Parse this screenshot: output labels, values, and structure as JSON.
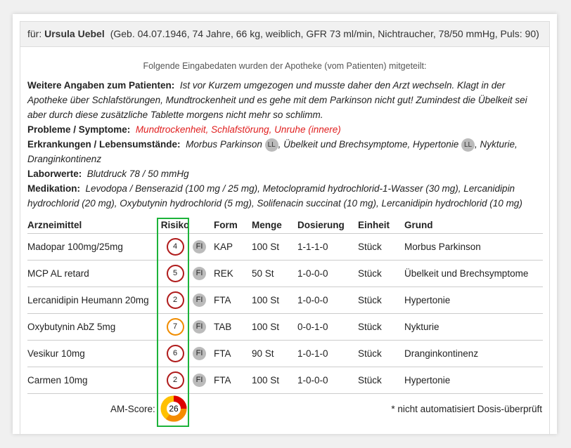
{
  "header": {
    "prefix": "für:",
    "name": "Ursula Uebel",
    "details": "(Geb. 04.07.1946, 74 Jahre, 66 kg, weiblich, GFR 73 ml/min, Nichtraucher, 78/50 mmHg, Puls: 90)"
  },
  "intro": "Folgende Eingabedaten wurden der Apotheke (vom Patienten) mitgeteilt:",
  "info": {
    "weitere_label": "Weitere Angaben zum Patienten:",
    "weitere": "Ist vor Kurzem umgezogen und musste daher den Arzt wechseln. Klagt in der Apotheke über Schlafstörungen, Mundtrockenheit und es gehe mit dem Parkinson nicht gut! Zumindest die Übelkeit sei aber durch diese zusätzliche Tablette morgens nicht mehr so schlimm.",
    "probleme_label": "Probleme / Symptome:",
    "probleme": "Mundtrockenheit, Schlafstörung, Unruhe (innere)",
    "erkrankungen_label": "Erkrankungen / Lebensumstände:",
    "erk1": "Morbus Parkinson",
    "erk2": ", Übelkeit und Brechsymptome, Hypertonie",
    "erk3": ", Nykturie, Dranginkontinenz",
    "ll": "LL",
    "labor_label": "Laborwerte:",
    "labor": "Blutdruck 78 / 50 mmHg",
    "medikation_label": "Medikation:",
    "medikation": "Levodopa / Benserazid (100 mg / 25 mg), Metoclopramid hydrochlorid-1-Wasser (30 mg), Lercanidipin hydrochlorid (20 mg), Oxybutynin hydrochlorid (5 mg), Solifenacin succinat (10 mg), Lercanidipin hydrochlorid (10 mg)"
  },
  "table": {
    "headers": [
      "Arzneimittel",
      "Risiko",
      "",
      "Form",
      "Menge",
      "Dosierung",
      "Einheit",
      "Grund"
    ],
    "rows": [
      {
        "name": "Madopar 100mg/25mg",
        "risk": "4",
        "color": "#b01c1c",
        "fi": "FI",
        "form": "KAP",
        "menge": "100 St",
        "dos": "1-1-1-0",
        "einheit": "Stück",
        "grund": "Morbus Parkinson"
      },
      {
        "name": "MCP AL retard",
        "risk": "5",
        "color": "#b01c1c",
        "fi": "FI",
        "form": "REK",
        "menge": "50 St",
        "dos": "1-0-0-0",
        "einheit": "Stück",
        "grund": "Übelkeit und Brechsymptome"
      },
      {
        "name": "Lercanidipin Heumann 20mg",
        "risk": "2",
        "color": "#b01c1c",
        "fi": "FI",
        "form": "FTA",
        "menge": "100 St",
        "dos": "1-0-0-0",
        "einheit": "Stück",
        "grund": "Hypertonie"
      },
      {
        "name": "Oxybutynin AbZ 5mg",
        "risk": "7",
        "color": "#f08c00",
        "fi": "FI",
        "form": "TAB",
        "menge": "100 St",
        "dos": "0-0-1-0",
        "einheit": "Stück",
        "grund": "Nykturie"
      },
      {
        "name": "Vesikur 10mg",
        "risk": "6",
        "color": "#b01c1c",
        "fi": "FI",
        "form": "FTA",
        "menge": "90 St",
        "dos": "1-0-1-0",
        "einheit": "Stück",
        "grund": "Dranginkontinenz"
      },
      {
        "name": "Carmen 10mg",
        "risk": "2",
        "color": "#b01c1c",
        "fi": "FI",
        "form": "FTA",
        "menge": "100 St",
        "dos": "1-0-0-0",
        "einheit": "Stück",
        "grund": "Hypertonie"
      }
    ]
  },
  "footer": {
    "score_label": "AM-Score:",
    "score": "26",
    "note": "* nicht automatisiert Dosis-überprüft"
  }
}
